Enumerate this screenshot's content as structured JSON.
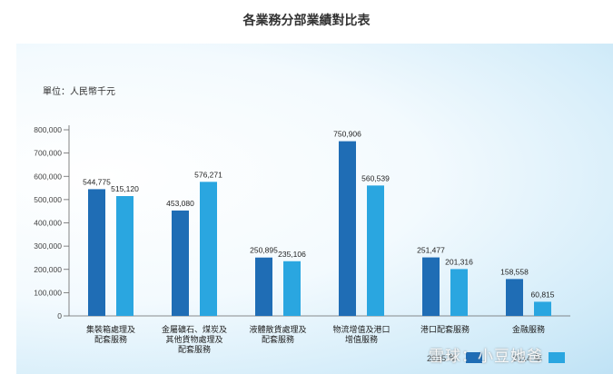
{
  "chart_data": {
    "type": "bar",
    "title": "各業務分部業績對比表",
    "unit_label": "單位：人民幣千元",
    "categories": [
      [
        "集裝箱處理及",
        "配套服務"
      ],
      [
        "金屬礦石、煤炭及",
        "其他貨物處理及",
        "配套服務"
      ],
      [
        "液體散貨處理及",
        "配套服務"
      ],
      [
        "物流增值及港口",
        "增值服務"
      ],
      [
        "港口配套服務"
      ],
      [
        "金融服務"
      ]
    ],
    "series": [
      {
        "name": "2015 年",
        "color": "#1f6db5",
        "values": [
          544775,
          453080,
          250895,
          750906,
          251477,
          158558
        ],
        "labels": [
          "544,775",
          "453,080",
          "250,895",
          "750,906",
          "251,477",
          "158,558"
        ]
      },
      {
        "name": "2014 年",
        "color": "#2aa6e0",
        "values": [
          515120,
          576271,
          235106,
          560539,
          201316,
          60815
        ],
        "labels": [
          "515,120",
          "576,271",
          "235,106",
          "560,539",
          "201,316",
          "60,815"
        ]
      }
    ],
    "ylim": [
      0,
      800000
    ],
    "yticks": [
      "0",
      "100,000",
      "200,000",
      "300,000",
      "400,000",
      "500,000",
      "600,000",
      "700,000",
      "800,000"
    ],
    "legend_placement": "bottom-right"
  },
  "watermark": "雪球：小豆她爸"
}
